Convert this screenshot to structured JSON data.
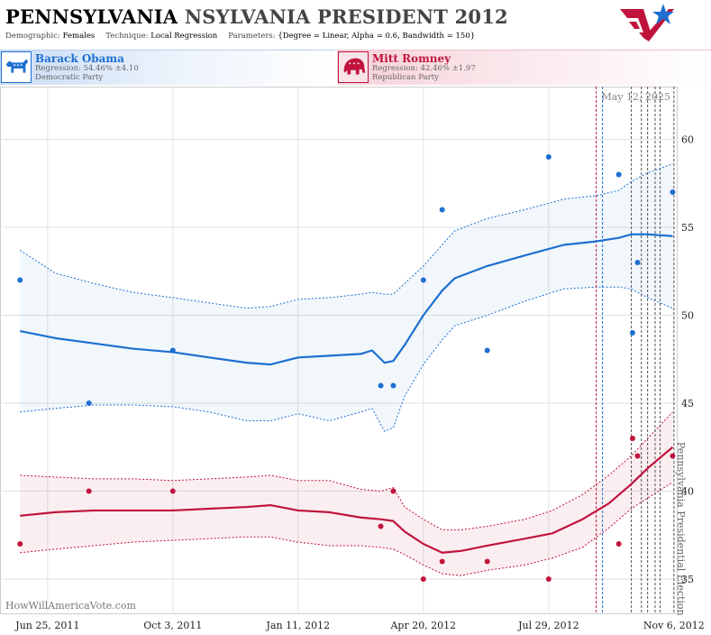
{
  "header": {
    "title_part1": "PENNSYLVANIA",
    "title_part2": "NSYLVANIA PRESIDENT 2012",
    "demographic_label": "Demographic:",
    "demographic_value": "Females",
    "technique_label": "Technique:",
    "technique_value": "Local Regression",
    "parameters_label": "Parameters:",
    "parameters_value": "{Degree = Linear, Alpha = 0.6, Bandwidth = 150}",
    "logo_icon": "star-flag-logo-icon"
  },
  "candidates": [
    {
      "name": "Barack Obama",
      "regression": "Regression: 54.46% ±4.10",
      "party": "Democratic Party",
      "color": "#1d6fd1",
      "icon": "donkey-icon"
    },
    {
      "name": "Mitt Romney",
      "regression": "Regression: 42.46% ±1.97",
      "party": "Republican Party",
      "color": "#c0143c",
      "icon": "elephant-icon"
    }
  ],
  "chart_data": {
    "type": "scatter",
    "date_label": "May 12, 2025",
    "watermark": "HowWillAmericaVote.com",
    "event_label": "Pennsylvania Presidential Election",
    "x_ticks": [
      {
        "date": "2011-06-25",
        "label": "Jun 25, 2011"
      },
      {
        "date": "2011-10-03",
        "label": "Oct 3, 2011"
      },
      {
        "date": "2012-01-11",
        "label": "Jan 11, 2012"
      },
      {
        "date": "2012-04-20",
        "label": "Apr 20, 2012"
      },
      {
        "date": "2012-07-29",
        "label": "Jul 29, 2012"
      },
      {
        "date": "2012-11-06",
        "label": "Nov 6, 2012"
      }
    ],
    "x_range": [
      "2011-05-18",
      "2012-11-09"
    ],
    "y_ticks": [
      35,
      40,
      45,
      50,
      55,
      60
    ],
    "ylim": [
      33,
      63
    ],
    "grid": true,
    "event_lines": [
      {
        "date": "2012-09-05",
        "color": "#c0143c"
      },
      {
        "date": "2012-09-10",
        "color": "#1d6fd1"
      },
      {
        "date": "2012-10-03",
        "color": "#555555"
      },
      {
        "date": "2012-10-11",
        "color": "#555555"
      },
      {
        "date": "2012-10-16",
        "color": "#555555"
      },
      {
        "date": "2012-10-22",
        "color": "#555555"
      },
      {
        "date": "2012-10-26",
        "color": "#555555"
      },
      {
        "date": "2012-11-06",
        "color": "#555555"
      }
    ],
    "series": [
      {
        "name": "Barack Obama",
        "color": "#1d6fd1",
        "points": [
          {
            "x": "2011-06-03",
            "y": 52
          },
          {
            "x": "2011-07-28",
            "y": 45
          },
          {
            "x": "2011-10-03",
            "y": 48
          },
          {
            "x": "2012-03-17",
            "y": 46
          },
          {
            "x": "2012-03-27",
            "y": 46
          },
          {
            "x": "2012-04-20",
            "y": 52
          },
          {
            "x": "2012-05-05",
            "y": 56
          },
          {
            "x": "2012-06-10",
            "y": 48
          },
          {
            "x": "2012-07-29",
            "y": 59
          },
          {
            "x": "2012-09-23",
            "y": 58
          },
          {
            "x": "2012-10-04",
            "y": 49
          },
          {
            "x": "2012-10-08",
            "y": 53
          },
          {
            "x": "2012-11-05",
            "y": 57
          }
        ],
        "trend": [
          {
            "x": "2011-06-03",
            "y": 49.1,
            "lo": 44.5,
            "hi": 53.7
          },
          {
            "x": "2011-07-01",
            "y": 48.7,
            "lo": 44.7,
            "hi": 52.4
          },
          {
            "x": "2011-08-01",
            "y": 48.4,
            "lo": 44.9,
            "hi": 51.8
          },
          {
            "x": "2011-09-01",
            "y": 48.1,
            "lo": 44.9,
            "hi": 51.3
          },
          {
            "x": "2011-10-03",
            "y": 47.9,
            "lo": 44.8,
            "hi": 51.0
          },
          {
            "x": "2011-11-01",
            "y": 47.6,
            "lo": 44.5,
            "hi": 50.7
          },
          {
            "x": "2011-12-01",
            "y": 47.3,
            "lo": 44.0,
            "hi": 50.4
          },
          {
            "x": "2011-12-20",
            "y": 47.2,
            "lo": 44.0,
            "hi": 50.5
          },
          {
            "x": "2012-01-11",
            "y": 47.6,
            "lo": 44.4,
            "hi": 50.9
          },
          {
            "x": "2012-02-05",
            "y": 47.7,
            "lo": 44.0,
            "hi": 51.0
          },
          {
            "x": "2012-03-01",
            "y": 47.8,
            "lo": 44.5,
            "hi": 51.2
          },
          {
            "x": "2012-03-10",
            "y": 48.0,
            "lo": 44.7,
            "hi": 51.3
          },
          {
            "x": "2012-03-20",
            "y": 47.3,
            "lo": 43.4,
            "hi": 51.2
          },
          {
            "x": "2012-03-27",
            "y": 47.4,
            "lo": 43.6,
            "hi": 51.2
          },
          {
            "x": "2012-04-05",
            "y": 48.3,
            "lo": 45.4,
            "hi": 51.8
          },
          {
            "x": "2012-04-20",
            "y": 50.0,
            "lo": 47.2,
            "hi": 52.8
          },
          {
            "x": "2012-05-05",
            "y": 51.4,
            "lo": 48.6,
            "hi": 54.0
          },
          {
            "x": "2012-05-15",
            "y": 52.1,
            "lo": 49.4,
            "hi": 54.8
          },
          {
            "x": "2012-06-10",
            "y": 52.8,
            "lo": 50.0,
            "hi": 55.5
          },
          {
            "x": "2012-07-10",
            "y": 53.4,
            "lo": 50.8,
            "hi": 56.0
          },
          {
            "x": "2012-08-10",
            "y": 54.0,
            "lo": 51.5,
            "hi": 56.6
          },
          {
            "x": "2012-09-05",
            "y": 54.2,
            "lo": 51.6,
            "hi": 56.8
          },
          {
            "x": "2012-09-23",
            "y": 54.4,
            "lo": 51.6,
            "hi": 57.1
          },
          {
            "x": "2012-10-03",
            "y": 54.6,
            "lo": 51.5,
            "hi": 57.6
          },
          {
            "x": "2012-10-16",
            "y": 54.6,
            "lo": 51.0,
            "hi": 58.1
          },
          {
            "x": "2012-11-05",
            "y": 54.5,
            "lo": 50.4,
            "hi": 58.6
          }
        ]
      },
      {
        "name": "Mitt Romney",
        "color": "#c0143c",
        "points": [
          {
            "x": "2011-06-03",
            "y": 37
          },
          {
            "x": "2011-07-28",
            "y": 40
          },
          {
            "x": "2011-10-03",
            "y": 40
          },
          {
            "x": "2012-03-17",
            "y": 38
          },
          {
            "x": "2012-03-27",
            "y": 40
          },
          {
            "x": "2012-04-20",
            "y": 35
          },
          {
            "x": "2012-05-05",
            "y": 36
          },
          {
            "x": "2012-06-10",
            "y": 36
          },
          {
            "x": "2012-07-29",
            "y": 35
          },
          {
            "x": "2012-09-23",
            "y": 37
          },
          {
            "x": "2012-10-04",
            "y": 43
          },
          {
            "x": "2012-10-08",
            "y": 42
          },
          {
            "x": "2012-11-05",
            "y": 42
          }
        ],
        "trend": [
          {
            "x": "2011-06-03",
            "y": 38.6,
            "lo": 36.5,
            "hi": 40.9
          },
          {
            "x": "2011-07-01",
            "y": 38.8,
            "lo": 36.7,
            "hi": 40.8
          },
          {
            "x": "2011-08-01",
            "y": 38.9,
            "lo": 36.9,
            "hi": 40.7
          },
          {
            "x": "2011-09-01",
            "y": 38.9,
            "lo": 37.1,
            "hi": 40.7
          },
          {
            "x": "2011-10-03",
            "y": 38.9,
            "lo": 37.2,
            "hi": 40.6
          },
          {
            "x": "2011-11-01",
            "y": 39.0,
            "lo": 37.3,
            "hi": 40.7
          },
          {
            "x": "2011-12-01",
            "y": 39.1,
            "lo": 37.4,
            "hi": 40.8
          },
          {
            "x": "2011-12-20",
            "y": 39.2,
            "lo": 37.4,
            "hi": 40.9
          },
          {
            "x": "2012-01-11",
            "y": 38.9,
            "lo": 37.1,
            "hi": 40.6
          },
          {
            "x": "2012-02-05",
            "y": 38.8,
            "lo": 36.9,
            "hi": 40.6
          },
          {
            "x": "2012-03-01",
            "y": 38.5,
            "lo": 36.9,
            "hi": 40.1
          },
          {
            "x": "2012-03-17",
            "y": 38.4,
            "lo": 36.8,
            "hi": 40.0
          },
          {
            "x": "2012-03-27",
            "y": 38.3,
            "lo": 36.7,
            "hi": 40.2
          },
          {
            "x": "2012-04-05",
            "y": 37.7,
            "lo": 36.4,
            "hi": 39.1
          },
          {
            "x": "2012-04-20",
            "y": 37.0,
            "lo": 35.8,
            "hi": 38.4
          },
          {
            "x": "2012-05-05",
            "y": 36.5,
            "lo": 35.3,
            "hi": 37.8
          },
          {
            "x": "2012-05-20",
            "y": 36.6,
            "lo": 35.2,
            "hi": 37.8
          },
          {
            "x": "2012-06-10",
            "y": 36.9,
            "lo": 35.5,
            "hi": 38.0
          },
          {
            "x": "2012-07-10",
            "y": 37.3,
            "lo": 35.8,
            "hi": 38.4
          },
          {
            "x": "2012-08-01",
            "y": 37.6,
            "lo": 36.2,
            "hi": 38.9
          },
          {
            "x": "2012-08-25",
            "y": 38.4,
            "lo": 36.8,
            "hi": 39.8
          },
          {
            "x": "2012-09-15",
            "y": 39.3,
            "lo": 37.9,
            "hi": 40.9
          },
          {
            "x": "2012-10-03",
            "y": 40.4,
            "lo": 39.0,
            "hi": 42.0
          },
          {
            "x": "2012-10-16",
            "y": 41.3,
            "lo": 39.6,
            "hi": 43.0
          },
          {
            "x": "2012-11-05",
            "y": 42.5,
            "lo": 40.5,
            "hi": 44.5
          }
        ]
      }
    ]
  }
}
